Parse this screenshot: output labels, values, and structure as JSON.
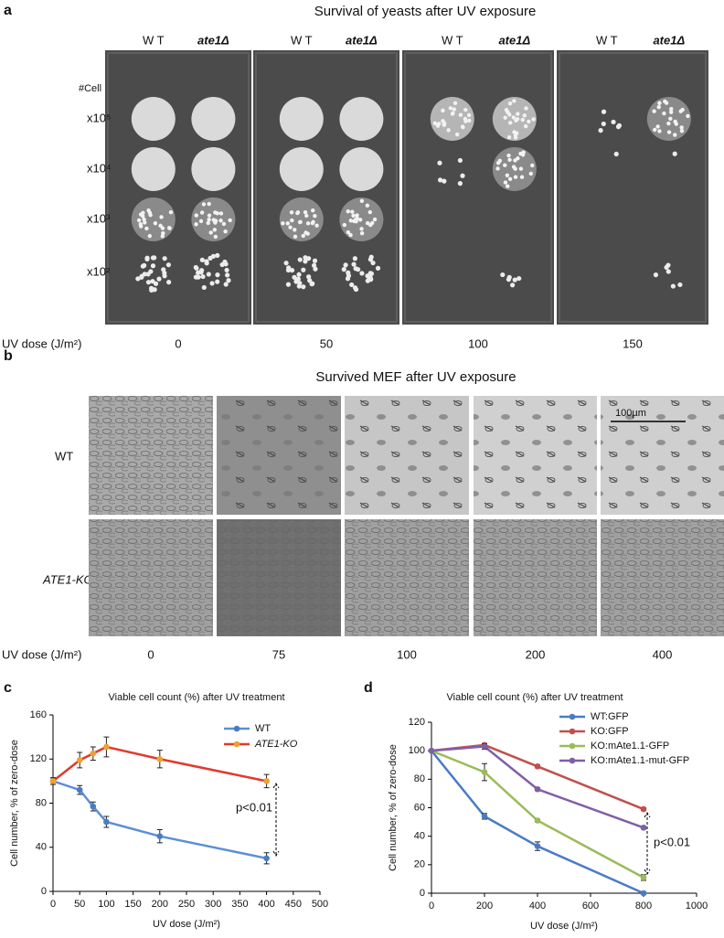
{
  "panels": {
    "a": {
      "label": "a",
      "title": "Survival of yeasts after UV exposure",
      "strains": [
        "W T",
        "ate1Δ"
      ],
      "cell_header": "#Cell",
      "cell_counts": [
        "x10⁵",
        "x10⁴",
        "x10³",
        "x10²"
      ],
      "dose_label": "UV dose (J/m²)",
      "doses": [
        "0",
        "50",
        "100",
        "150"
      ]
    },
    "b": {
      "label": "b",
      "title": "Survived MEF after UV exposure",
      "rows": [
        "WT",
        "ATE1-KO"
      ],
      "scale_bar": "100µm",
      "dose_label": "UV dose (J/m²)",
      "doses": [
        "0",
        "75",
        "100",
        "200",
        "400"
      ]
    }
  },
  "chart_data": [
    {
      "type": "line",
      "label": "c",
      "title": "Viable cell count (%) after UV treatment",
      "xlabel": "UV dose (J/m²)",
      "ylabel": "Cell number, % of zero-dose",
      "x": [
        0,
        50,
        75,
        100,
        200,
        400
      ],
      "series": [
        {
          "name": "WT",
          "color": "#5b8fd6",
          "marker_color": "#4a7cc4",
          "italic": false,
          "values": [
            100,
            92,
            77,
            63,
            50,
            30
          ],
          "errors": [
            3,
            4,
            4,
            5,
            6,
            5
          ]
        },
        {
          "name": "ATE1-KO",
          "color": "#e03a2c",
          "marker_color": "#f0a030",
          "italic": true,
          "values": [
            100,
            119,
            125,
            131,
            120,
            100
          ],
          "errors": [
            3,
            7,
            6,
            9,
            8,
            6
          ]
        }
      ],
      "xlim": [
        0,
        500
      ],
      "xticks": [
        0,
        50,
        100,
        150,
        200,
        250,
        300,
        350,
        400,
        450,
        500
      ],
      "ylim": [
        0,
        160
      ],
      "yticks": [
        0,
        40,
        80,
        120,
        160
      ],
      "legend": "upper right",
      "annotation": "p<0.01"
    },
    {
      "type": "line",
      "label": "d",
      "title": "Viable cell count (%) after UV treatment",
      "xlabel": "UV dose (J/m²)",
      "ylabel": "Cell number, % of zero-dose",
      "x": [
        0,
        200,
        400,
        800
      ],
      "series": [
        {
          "name": "WT:GFP",
          "color": "#4a7cc4",
          "marker_color": "#4a7cc4",
          "italic": false,
          "values": [
            100,
            54,
            33,
            0
          ],
          "errors": [
            0,
            2,
            3,
            1
          ]
        },
        {
          "name": "KO:GFP",
          "color": "#c0504d",
          "marker_color": "#c0504d",
          "italic": false,
          "values": [
            100,
            104,
            89,
            59
          ],
          "errors": [
            0,
            1,
            1,
            1
          ]
        },
        {
          "name": "KO:mAte1.1-GFP",
          "color": "#9bbb59",
          "marker_color": "#9bbb59",
          "italic": false,
          "values": [
            100,
            85,
            51,
            11
          ],
          "errors": [
            0,
            6,
            1,
            2
          ]
        },
        {
          "name": "KO:mAte1.1-mut-GFP",
          "color": "#7f5fa6",
          "marker_color": "#7f5fa6",
          "italic": false,
          "values": [
            100,
            103,
            73,
            46
          ],
          "errors": [
            0,
            2,
            1,
            1
          ]
        }
      ],
      "xlim": [
        0,
        1000
      ],
      "xticks": [
        0,
        200,
        400,
        600,
        800,
        1000
      ],
      "ylim": [
        0,
        120
      ],
      "yticks": [
        0,
        20,
        40,
        60,
        80,
        100,
        120
      ],
      "legend": "upper right",
      "annotation": "p<0.01"
    }
  ]
}
